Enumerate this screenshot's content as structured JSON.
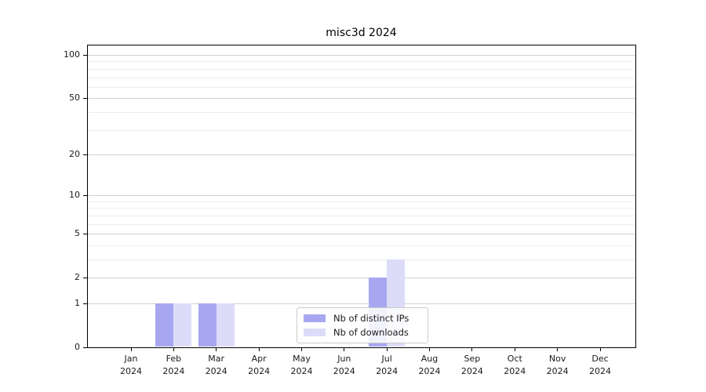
{
  "chart_data": {
    "type": "bar",
    "title": "misc3d 2024",
    "x_months": [
      "Jan",
      "Feb",
      "Mar",
      "Apr",
      "May",
      "Jun",
      "Jul",
      "Aug",
      "Sep",
      "Oct",
      "Nov",
      "Dec"
    ],
    "x_year": "2024",
    "y_scale": "log1p",
    "y_tick_values": [
      0,
      1,
      2,
      5,
      10,
      20,
      50,
      100
    ],
    "y_minor_gridline_values": [
      3,
      4,
      6,
      7,
      8,
      9,
      30,
      40,
      60,
      70,
      80,
      90
    ],
    "ylim": [
      0,
      115
    ],
    "grid": true,
    "legend_position": "lower center inside plot",
    "series": [
      {
        "name": "Nb of distinct IPs",
        "color": "#a7a7f0",
        "values": [
          0,
          1,
          1,
          0,
          0,
          0,
          2,
          0,
          0,
          0,
          0,
          0
        ]
      },
      {
        "name": "Nb of downloads",
        "color": "#dcdcf9",
        "values": [
          0,
          1,
          1,
          0,
          0,
          0,
          3,
          0,
          0,
          0,
          0,
          0
        ]
      }
    ]
  }
}
